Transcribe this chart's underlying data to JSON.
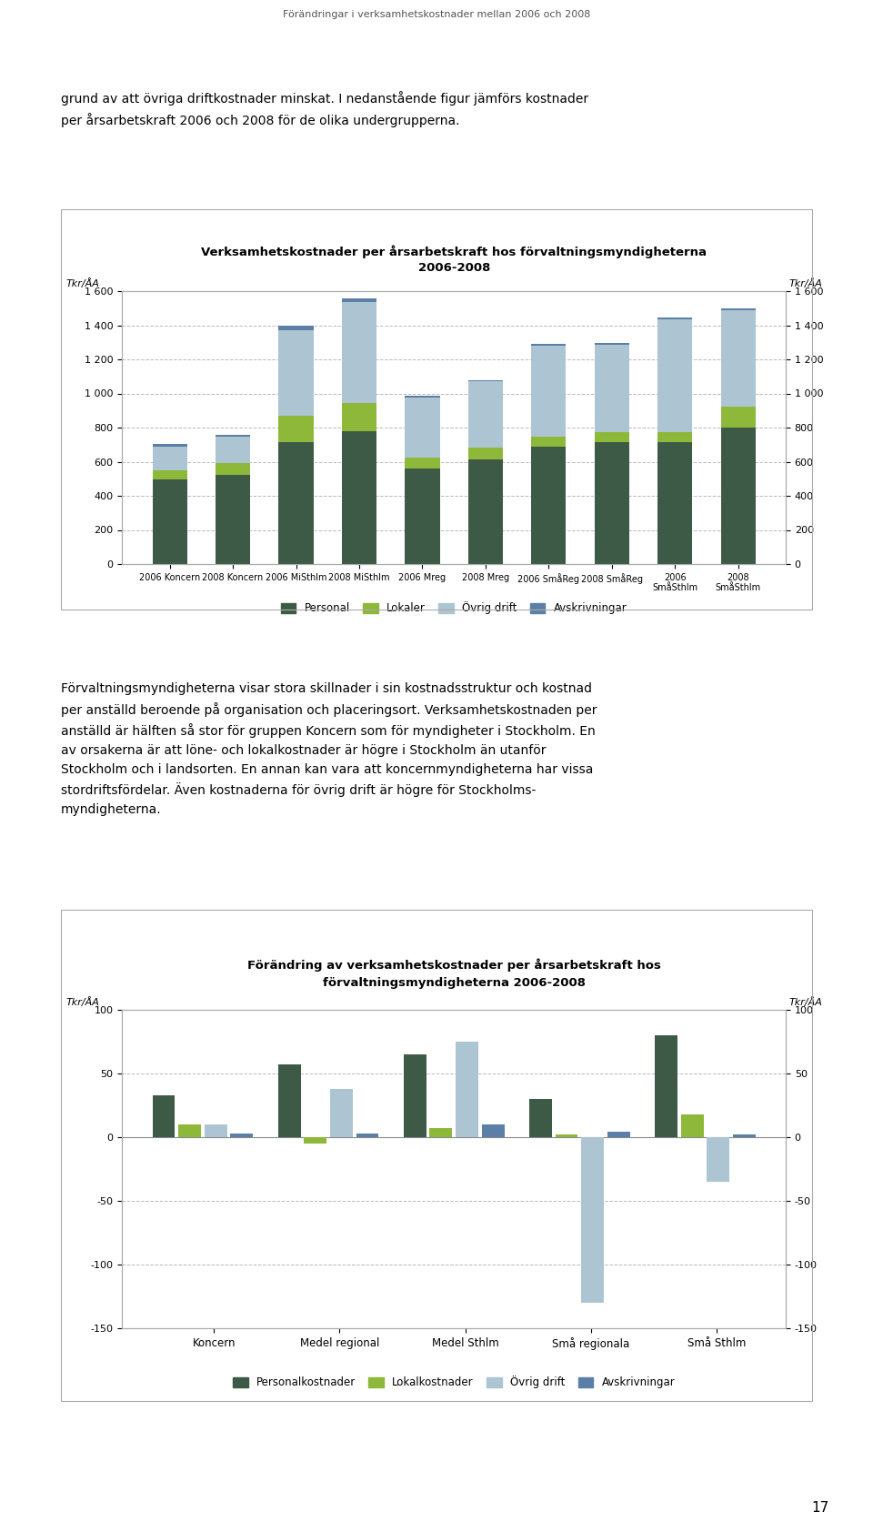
{
  "page_title": "Förändringar i verksamhetskostnader mellan 2006 och 2008",
  "page_number": "17",
  "intro_text_line1": "grund av att övriga driftkostnader minskat. I nedanstående figur jämförs kostnader",
  "intro_text_line2": "per årsarbetskraft 2006 och 2008 för de olika undergrupperna.",
  "chart1": {
    "title_line1": "Verksamhetskostnader per årsarbetskraft hos förvaltningsmyndigheterna",
    "title_line2": "2006-2008",
    "ylabel": "Tkr/ÅA",
    "ylim": [
      0,
      1600
    ],
    "yticks": [
      0,
      200,
      400,
      600,
      800,
      1000,
      1200,
      1400,
      1600
    ],
    "categories": [
      "2006 Koncern",
      "2008 Koncern",
      "2006 MiSthlm",
      "2008 MiSthlm",
      "2006 Mreg",
      "2008 Mreg",
      "2006 SmåReg",
      "2008 SmåReg",
      "2006\nSmåSthlm",
      "2008\nSmåSthlm"
    ],
    "personal": [
      495,
      525,
      715,
      780,
      560,
      615,
      690,
      715,
      715,
      800
    ],
    "lokaler": [
      55,
      65,
      155,
      165,
      65,
      70,
      55,
      60,
      60,
      125
    ],
    "ovrig_drift": [
      140,
      155,
      500,
      590,
      350,
      385,
      535,
      510,
      660,
      565
    ],
    "avskrivningar": [
      15,
      15,
      30,
      20,
      10,
      10,
      10,
      10,
      10,
      10
    ],
    "color_personal": "#3d5a47",
    "color_lokaler": "#8db83a",
    "color_ovrig_drift": "#adc4d2",
    "color_avskrivningar": "#5b7fa6",
    "legend_labels": [
      "Personal",
      "Lokaler",
      "Övrig drift",
      "Avskrivningar"
    ],
    "bar_width": 0.55,
    "grid_color": "#bbbbbb",
    "border_color": "#aaaaaa"
  },
  "body_text": [
    "Förvaltningsmyndigheterna visar stora skillnader i sin kostnadsstruktur och kostnad",
    "per anställd beroende på organisation och placeringsort. Verksamhetskostnaden per",
    "anställd är hälften så stor för gruppen Koncern som för myndigheter i Stockholm. En",
    "av orsakerna är att löne- och lokalkostnader är högre i Stockholm än utanför",
    "Stockholm och i landsorten. En annan kan vara att koncernmyndigheterna har vissa",
    "stordriftsfördelar. Även kostnaderna för övrig drift är högre för Stockholms-",
    "myndigheterna."
  ],
  "chart2": {
    "title_line1": "Förändring av verksamhetskostnader per årsarbetskraft hos",
    "title_line2": "förvaltningsmyndigheterna 2006-2008",
    "ylabel": "Tkr/ÅA",
    "ylim": [
      -150,
      100
    ],
    "yticks": [
      -150,
      -100,
      -50,
      0,
      50,
      100
    ],
    "categories": [
      "Koncern",
      "Medel regional",
      "Medel Sthlm",
      "Små regionala",
      "Små Sthlm"
    ],
    "personalkostnader": [
      33,
      57,
      65,
      30,
      80
    ],
    "lokalkostnader": [
      10,
      -5,
      7,
      2,
      18
    ],
    "ovrig_drift": [
      10,
      38,
      75,
      -130,
      -35
    ],
    "avskrivningar": [
      3,
      3,
      10,
      4,
      2
    ],
    "color_personalkostnader": "#3d5a47",
    "color_lokalkostnader": "#8db83a",
    "color_ovrig_drift": "#adc4d2",
    "color_avskrivningar": "#5b7fa6",
    "legend_labels": [
      "Personalkostnader",
      "Lokalkostnader",
      "Övrig drift",
      "Avskrivningar"
    ],
    "bar_width": 0.18,
    "grid_color": "#bbbbbb"
  }
}
